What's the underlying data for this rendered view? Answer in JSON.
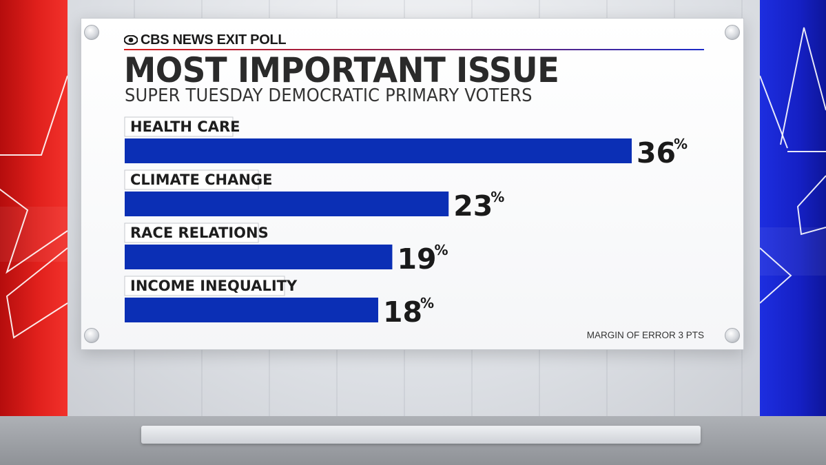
{
  "brand": {
    "network": "CBS NEWS EXIT POLL"
  },
  "headline": "MOST IMPORTANT ISSUE",
  "subhead": "SUPER TUESDAY DEMOCRATIC PRIMARY VOTERS",
  "footnote": "MARGIN OF ERROR 3 PTS",
  "colors": {
    "bar": "#0b2fb5",
    "left_panel": "#e0201c",
    "right_panel": "#1520c4"
  },
  "chart_data": {
    "type": "bar",
    "orientation": "horizontal",
    "title": "MOST IMPORTANT ISSUE",
    "subtitle": "SUPER TUESDAY DEMOCRATIC PRIMARY VOTERS",
    "categories": [
      "HEALTH CARE",
      "CLIMATE CHANGE",
      "RACE RELATIONS",
      "INCOME INEQUALITY"
    ],
    "values": [
      36,
      23,
      19,
      18
    ],
    "value_suffix": "%",
    "grid": false,
    "legend": "none"
  }
}
